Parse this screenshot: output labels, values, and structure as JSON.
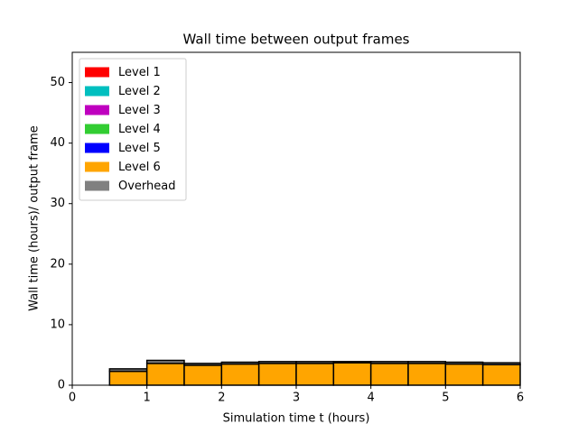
{
  "chart_data": {
    "type": "histogram",
    "title": "Wall time between output frames",
    "xlabel": "Simulation time t (hours)",
    "ylabel": "Wall time (hours)/ output frame",
    "bins": [
      0,
      0.5,
      1,
      1.5,
      2,
      2.5,
      3,
      3.5,
      4,
      4.5,
      5,
      5.5,
      6
    ],
    "series": [
      {
        "name": "Level 1",
        "color": "#ff0000",
        "values": [
          0,
          0,
          0,
          0,
          0,
          0,
          0,
          0,
          0,
          0,
          0,
          0
        ]
      },
      {
        "name": "Level 2",
        "color": "#00bfbf",
        "values": [
          0,
          0,
          0,
          0,
          0,
          0,
          0,
          0,
          0,
          0,
          0,
          0
        ]
      },
      {
        "name": "Level 3",
        "color": "#bf00bf",
        "values": [
          0,
          0,
          0,
          0,
          0,
          0,
          0,
          0,
          0,
          0,
          0,
          0
        ]
      },
      {
        "name": "Level 4",
        "color": "#32cd32",
        "values": [
          0,
          0,
          0,
          0,
          0,
          0,
          0,
          0,
          0,
          0,
          0,
          0
        ]
      },
      {
        "name": "Level 5",
        "color": "#0000ff",
        "values": [
          0,
          0,
          0,
          0,
          0,
          0,
          0,
          0,
          0,
          0,
          0,
          0
        ]
      },
      {
        "name": "Level 6",
        "color": "#ffa500",
        "values": [
          0,
          2.3,
          3.6,
          3.3,
          3.5,
          3.6,
          3.6,
          3.7,
          3.6,
          3.6,
          3.5,
          3.4
        ]
      },
      {
        "name": "Overhead",
        "color": "#808080",
        "values": [
          0,
          0.4,
          0.5,
          0.3,
          0.3,
          0.3,
          0.3,
          0.2,
          0.3,
          0.3,
          0.3,
          0.3
        ]
      }
    ],
    "xlim": [
      0,
      6
    ],
    "xticks": [
      0,
      1,
      2,
      3,
      4,
      5,
      6
    ],
    "ylim": [
      0,
      55
    ],
    "yticks": [
      0,
      10,
      20,
      30,
      40,
      50
    ],
    "legend": "upper left"
  }
}
